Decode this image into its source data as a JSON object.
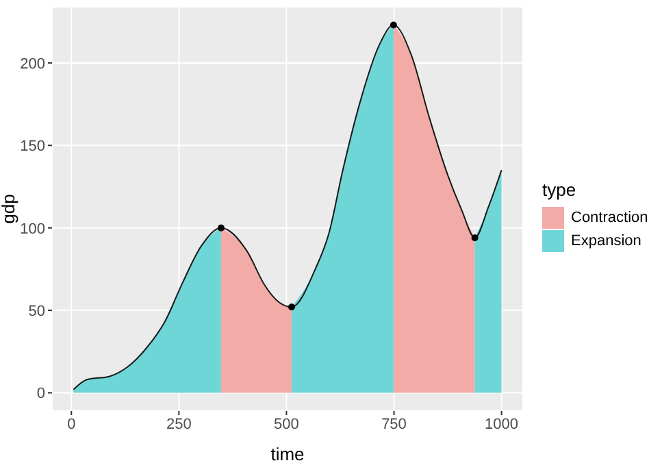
{
  "chart_data": {
    "type": "area",
    "xlabel": "time",
    "ylabel": "gdp",
    "legend_title": "type",
    "legend": "right",
    "grid": true,
    "x": [
      5,
      36,
      89,
      132,
      174,
      217,
      259,
      302,
      348,
      408,
      450,
      482,
      512,
      567,
      599,
      631,
      673,
      716,
      749,
      790,
      832,
      875,
      907,
      938,
      970,
      1000
    ],
    "series": [
      {
        "name": "Contraction",
        "color": "#f2aba6",
        "values": [
          null,
          null,
          null,
          null,
          null,
          null,
          null,
          null,
          100,
          86,
          65,
          55,
          52,
          null,
          null,
          null,
          null,
          null,
          223,
          205,
          167,
          132,
          111,
          94,
          null,
          null
        ]
      },
      {
        "name": "Expansion",
        "color": "#6fd6d8",
        "values": [
          2,
          8,
          10,
          16,
          27,
          43,
          67,
          89,
          100,
          null,
          null,
          null,
          52,
          75,
          97,
          135,
          178,
          211,
          223,
          null,
          null,
          null,
          null,
          94,
          113,
          135
        ]
      },
      {
        "type": "line",
        "color": "#1a1a1a",
        "values": [
          2,
          8,
          10,
          16,
          27,
          43,
          67,
          89,
          100,
          86,
          65,
          55,
          52,
          75,
          97,
          135,
          178,
          211,
          223,
          205,
          167,
          132,
          111,
          94,
          113,
          135
        ]
      },
      {
        "type": "scatter",
        "color": "#000000",
        "x": [
          348,
          512,
          749,
          938
        ],
        "values": [
          100,
          52,
          223,
          94
        ]
      }
    ],
    "xlim": [
      -45,
      1050
    ],
    "xticks": [
      0,
      250,
      500,
      750,
      1000
    ],
    "ylim": [
      -11,
      234
    ],
    "yticks": [
      0,
      50,
      100,
      150,
      200
    ]
  }
}
